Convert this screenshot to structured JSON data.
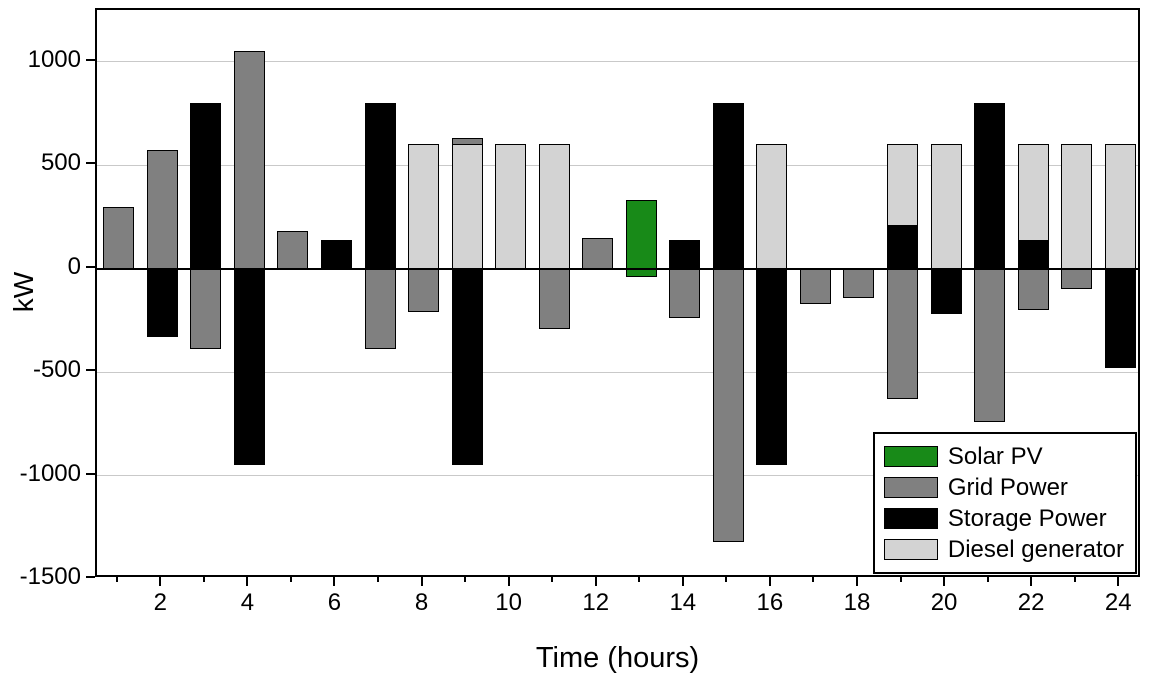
{
  "chart_data": {
    "type": "bar",
    "title": "",
    "xlabel": "Time (hours)",
    "ylabel": "kW",
    "xlim": [
      0.5,
      24.5
    ],
    "ylim": [
      -1500,
      1250
    ],
    "yticks": [
      1000,
      500,
      0,
      -500,
      -1000,
      -1500
    ],
    "xticks": [
      2,
      4,
      6,
      8,
      10,
      12,
      14,
      16,
      18,
      20,
      22,
      24
    ],
    "minor_xticks": [
      1,
      3,
      5,
      7,
      9,
      11,
      13,
      15,
      17,
      19,
      21,
      23
    ],
    "gridlines": [
      1000,
      500,
      -500,
      -1000
    ],
    "grid": true,
    "legend_position": "lower-right",
    "series_styles": {
      "solar": {
        "label": "Solar PV",
        "color": "#188a18"
      },
      "grid": {
        "label": "Grid Power",
        "color": "#808080"
      },
      "storage": {
        "label": "Storage Power",
        "color": "#000000"
      },
      "diesel": {
        "label": "Diesel generator",
        "color": "#d3d3d3"
      }
    },
    "legend_order": [
      "solar",
      "grid",
      "storage",
      "diesel"
    ],
    "draw_order": [
      "grid",
      "diesel",
      "storage",
      "solar"
    ],
    "bars": [
      {
        "hour": 1,
        "series": "grid",
        "value": 300
      },
      {
        "hour": 2,
        "series": "grid",
        "value": 575
      },
      {
        "hour": 2,
        "series": "storage",
        "value": -330
      },
      {
        "hour": 3,
        "series": "storage",
        "value": 800
      },
      {
        "hour": 3,
        "series": "grid",
        "value": -390
      },
      {
        "hour": 4,
        "series": "grid",
        "value": 1050
      },
      {
        "hour": 4,
        "series": "storage",
        "value": -950
      },
      {
        "hour": 5,
        "series": "grid",
        "value": 180
      },
      {
        "hour": 6,
        "series": "storage",
        "value": 140
      },
      {
        "hour": 7,
        "series": "storage",
        "value": 800
      },
      {
        "hour": 7,
        "series": "grid",
        "value": -390
      },
      {
        "hour": 8,
        "series": "diesel",
        "value": 600
      },
      {
        "hour": 8,
        "series": "grid",
        "value": -210
      },
      {
        "hour": 9,
        "series": "grid",
        "value": 630
      },
      {
        "hour": 9,
        "series": "diesel",
        "value": 600
      },
      {
        "hour": 9,
        "series": "storage",
        "value": -950
      },
      {
        "hour": 10,
        "series": "diesel",
        "value": 600
      },
      {
        "hour": 11,
        "series": "diesel",
        "value": 600
      },
      {
        "hour": 11,
        "series": "grid",
        "value": -290
      },
      {
        "hour": 12,
        "series": "grid",
        "value": 150
      },
      {
        "hour": 13,
        "series": "solar",
        "value": 330
      },
      {
        "hour": 13,
        "series": "solar",
        "value": -40
      },
      {
        "hour": 14,
        "series": "storage",
        "value": 140
      },
      {
        "hour": 14,
        "series": "grid",
        "value": -240
      },
      {
        "hour": 15,
        "series": "storage",
        "value": 800
      },
      {
        "hour": 15,
        "series": "grid",
        "value": -1320
      },
      {
        "hour": 16,
        "series": "diesel",
        "value": 600
      },
      {
        "hour": 16,
        "series": "storage",
        "value": -950
      },
      {
        "hour": 17,
        "series": "grid",
        "value": -170
      },
      {
        "hour": 18,
        "series": "grid",
        "value": -140
      },
      {
        "hour": 19,
        "series": "diesel",
        "value": 600
      },
      {
        "hour": 19,
        "series": "storage",
        "value": 210
      },
      {
        "hour": 19,
        "series": "grid",
        "value": -630
      },
      {
        "hour": 20,
        "series": "diesel",
        "value": 600
      },
      {
        "hour": 20,
        "series": "storage",
        "value": -220
      },
      {
        "hour": 21,
        "series": "storage",
        "value": 800
      },
      {
        "hour": 21,
        "series": "grid",
        "value": -740
      },
      {
        "hour": 22,
        "series": "diesel",
        "value": 600
      },
      {
        "hour": 22,
        "series": "storage",
        "value": 140
      },
      {
        "hour": 22,
        "series": "grid",
        "value": -200
      },
      {
        "hour": 23,
        "series": "diesel",
        "value": 600
      },
      {
        "hour": 23,
        "series": "grid",
        "value": -100
      },
      {
        "hour": 24,
        "series": "diesel",
        "value": 600
      },
      {
        "hour": 24,
        "series": "storage",
        "value": -480
      }
    ]
  }
}
